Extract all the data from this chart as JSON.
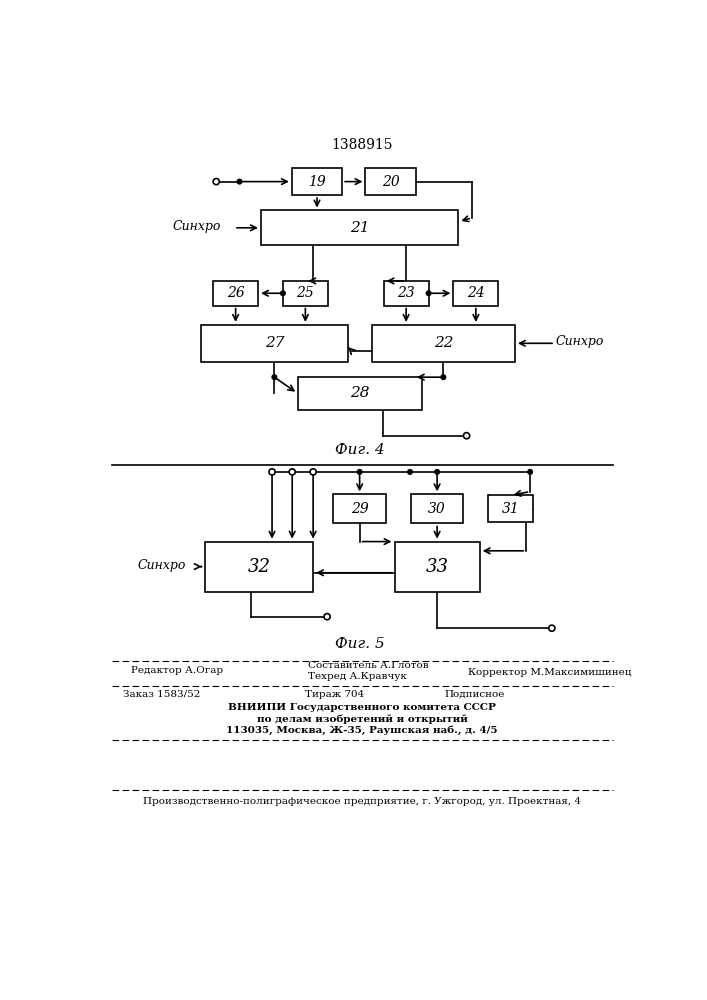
{
  "title": "1388915",
  "fig4_label": "Фиг. 4",
  "fig5_label": "Фиг. 5",
  "background_color": "#ffffff",
  "box_color": "#ffffff",
  "box_edge_color": "#000000",
  "line_color": "#000000",
  "synchro_label": "Синхро"
}
